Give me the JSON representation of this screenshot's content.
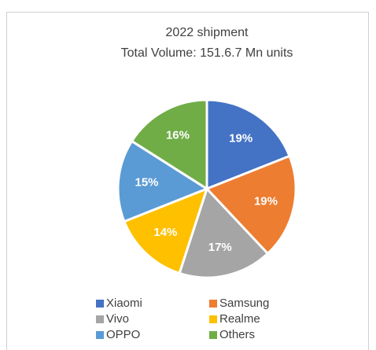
{
  "chart_data": {
    "type": "pie",
    "title": "2022 shipment",
    "subtitle": "Total Volume: 151.6.7 Mn units",
    "categories": [
      "Xiaomi",
      "Samsung",
      "Vivo",
      "Realme",
      "OPPO",
      "Others"
    ],
    "values": [
      19,
      19,
      17,
      14,
      15,
      16
    ],
    "value_labels": [
      "19%",
      "19%",
      "17%",
      "14%",
      "15%",
      "16%"
    ],
    "colors": [
      "#4472c4",
      "#ed7d31",
      "#a5a5a5",
      "#ffc000",
      "#5b9bd5",
      "#70ad47"
    ],
    "legend": "bottom"
  }
}
